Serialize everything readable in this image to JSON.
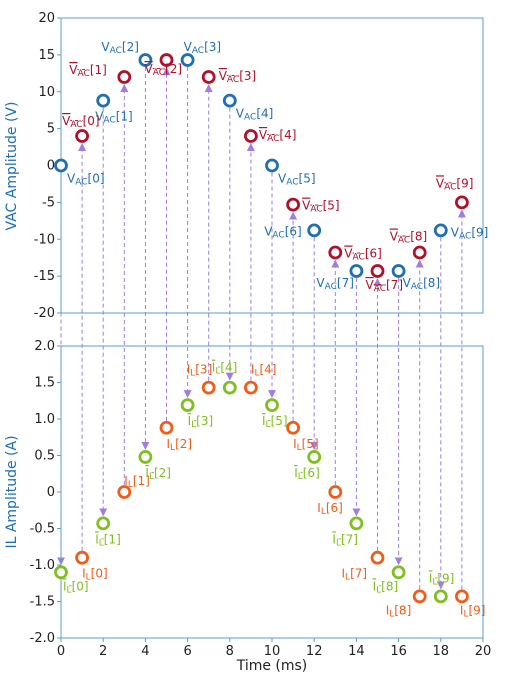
{
  "colors": {
    "vac": "#1f6fb2",
    "vac_bar": "#b0102a",
    "il": "#f25c19",
    "il_bar": "#7fbf1f",
    "arrow": "#a07de0",
    "axis": "#5a9ecf"
  },
  "chart_data": [
    {
      "type": "scatter",
      "ylabel": "VAC Amplitude (V)",
      "ylim": [
        -20,
        20
      ],
      "yticks": [
        "20",
        "15",
        "10",
        "5",
        "0",
        "-5",
        "-10",
        "-15",
        "-20"
      ],
      "series": [
        {
          "name": "VAC",
          "x": [
            0,
            2,
            4,
            6,
            8,
            10,
            12,
            14,
            16,
            18
          ],
          "y": [
            0,
            8.8,
            14.3,
            14.3,
            8.8,
            0,
            -8.8,
            -14.3,
            -14.3,
            -8.8
          ],
          "labels": [
            "VAC[0]",
            "VAC[1]",
            "VAC[2]",
            "VAC[3]",
            "VAC[4]",
            "VAC[5]",
            "VAC[6]",
            "VAC[7]",
            "VAC[8]",
            "VAC[9]"
          ]
        },
        {
          "name": "VAC bar",
          "x": [
            1,
            3,
            5,
            7,
            9,
            11,
            13,
            15,
            17,
            19
          ],
          "y": [
            4.0,
            12.0,
            14.3,
            12.0,
            4.0,
            -5.3,
            -11.8,
            -14.3,
            -11.8,
            -5.0
          ],
          "labels": [
            "VAC[0]",
            "VAC[1]",
            "VAC[2]",
            "VAC[3]",
            "VAC[4]",
            "VAC[5]",
            "VAC[6]",
            "VAC[7]",
            "VAC[8]",
            "VAC[9]"
          ]
        }
      ]
    },
    {
      "type": "scatter",
      "xlabel": "Time (ms)",
      "ylabel": "IL Amplitude (A)",
      "xlim": [
        0,
        20
      ],
      "ylim": [
        -2.0,
        2.0
      ],
      "xticks": [
        "0",
        "2",
        "4",
        "6",
        "8",
        "10",
        "12",
        "14",
        "16",
        "18",
        "20"
      ],
      "yticks": [
        "2.0",
        "1.5",
        "1.0",
        "0.5",
        "0",
        "-0.5",
        "-1.0",
        "-1.5",
        "-2.0"
      ],
      "series": [
        {
          "name": "IL",
          "x": [
            1,
            3,
            5,
            7,
            9,
            11,
            13,
            15,
            17,
            19
          ],
          "y": [
            -0.9,
            0.0,
            0.88,
            1.43,
            1.43,
            0.88,
            0.0,
            -0.9,
            -1.43,
            -1.43
          ],
          "labels": [
            "IL[0]",
            "IL[1]",
            "IL[2]",
            "IL[3]",
            "IL[4]",
            "IL[5]",
            "IL[6]",
            "IL[7]",
            "IL[8]",
            "IL[9]"
          ]
        },
        {
          "name": "IL bar",
          "x": [
            0,
            2,
            4,
            6,
            8,
            10,
            12,
            14,
            16,
            18
          ],
          "y": [
            -1.1,
            -0.43,
            0.48,
            1.19,
            1.43,
            1.19,
            0.48,
            -0.43,
            -1.1,
            -1.43
          ],
          "labels": [
            "IL[0]",
            "IL[1]",
            "IL[2]",
            "IL[3]",
            "IL[4]",
            "IL[5]",
            "IL[6]",
            "IL[7]",
            "IL[8]",
            "IL[9]"
          ]
        }
      ]
    }
  ]
}
